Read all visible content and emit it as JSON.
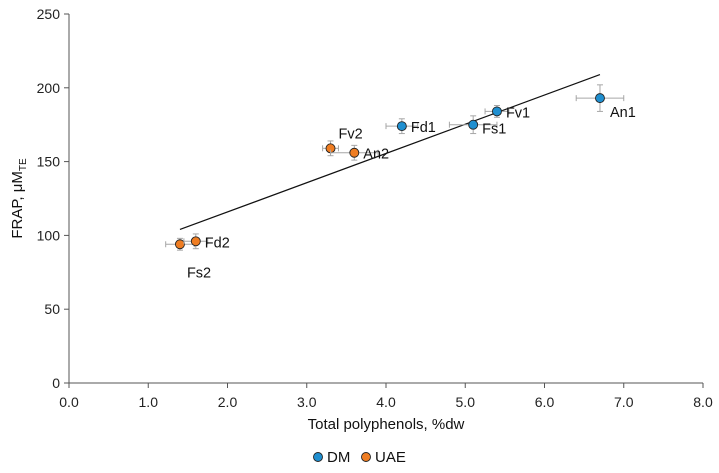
{
  "chart_data": {
    "type": "scatter",
    "title": "",
    "xlabel": "Total polyphenols, %dw",
    "ylabel": {
      "main": "FRAP, μM",
      "subscript": "TE"
    },
    "xlim": [
      0,
      8
    ],
    "ylim": [
      0,
      250
    ],
    "x_ticks": [
      "0.0",
      "1.0",
      "2.0",
      "3.0",
      "4.0",
      "5.0",
      "6.0",
      "7.0",
      "8.0"
    ],
    "y_ticks": [
      "0",
      "50",
      "100",
      "150",
      "200",
      "250"
    ],
    "grid": false,
    "legend_position": "bottom-center",
    "series": [
      {
        "name": "DM",
        "color": "#1f8fd0",
        "points": [
          {
            "label": "Fd1",
            "x": 4.2,
            "y": 174,
            "xerr": 0.2,
            "yerr": 5
          },
          {
            "label": "Fs1",
            "x": 5.1,
            "y": 175,
            "xerr": 0.3,
            "yerr": 6
          },
          {
            "label": "Fv1",
            "x": 5.4,
            "y": 184,
            "xerr": 0.15,
            "yerr": 4
          },
          {
            "label": "An1",
            "x": 6.7,
            "y": 193,
            "xerr": 0.3,
            "yerr": 9
          }
        ]
      },
      {
        "name": "UAE",
        "color": "#ef7d22",
        "points": [
          {
            "label": "Fs2",
            "x": 1.4,
            "y": 94,
            "xerr": 0.18,
            "yerr": 4
          },
          {
            "label": "Fd2",
            "x": 1.6,
            "y": 96,
            "xerr": 0.15,
            "yerr": 5
          },
          {
            "label": "Fv2",
            "x": 3.3,
            "y": 159,
            "xerr": 0.1,
            "yerr": 5
          },
          {
            "label": "An2",
            "x": 3.6,
            "y": 156,
            "xerr": 0.3,
            "yerr": 5
          }
        ]
      }
    ],
    "trendline": {
      "x": [
        1.4,
        6.7
      ],
      "y": [
        104,
        209
      ],
      "color": "#111111"
    }
  }
}
